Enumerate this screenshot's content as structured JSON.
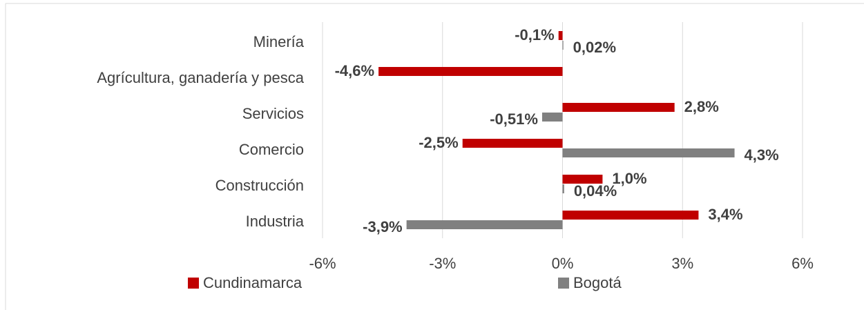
{
  "chart_data": {
    "type": "bar",
    "orientation": "horizontal",
    "categories": [
      "Minería",
      "Agrícultura, ganadería y pesca",
      "Servicios",
      "Comercio",
      "Construcción",
      "Industria"
    ],
    "series": [
      {
        "name": "Cundinamarca",
        "color": "#c00000",
        "values": [
          -0.1,
          -4.6,
          2.8,
          -2.5,
          1.0,
          3.4
        ],
        "value_labels": [
          "-0,1%",
          "-4,6%",
          "2,8%",
          "-2,5%",
          "1,0%",
          "3,4%"
        ]
      },
      {
        "name": "Bogotá",
        "color": "#808080",
        "values": [
          0.02,
          null,
          -0.51,
          4.3,
          0.04,
          -3.9
        ],
        "value_labels": [
          "0,02%",
          null,
          "-0,51%",
          "4,3%",
          "0,04%",
          "-3,9%"
        ]
      }
    ],
    "xlim": [
      -6,
      6
    ],
    "xticks": [
      {
        "value": -6,
        "label": "-6%"
      },
      {
        "value": -3,
        "label": "-3%"
      },
      {
        "value": 0,
        "label": "0%"
      },
      {
        "value": 3,
        "label": "3%"
      },
      {
        "value": 6,
        "label": "6%"
      }
    ],
    "grid": true,
    "legend": "bottom"
  }
}
